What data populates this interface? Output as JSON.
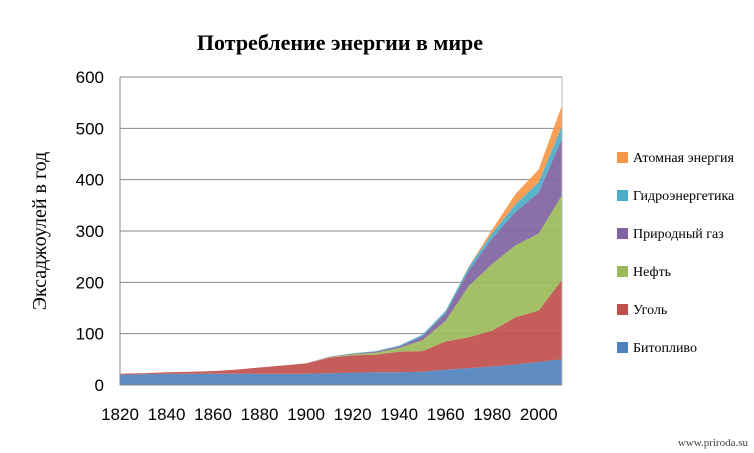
{
  "chart_data": {
    "type": "area",
    "stacked": true,
    "title": "Потребление энергии в мире",
    "xlabel": "",
    "ylabel": "Эксаджоулей в год",
    "xlim": [
      1820,
      2010
    ],
    "ylim": [
      0,
      600
    ],
    "x_ticks": [
      "1820",
      "1840",
      "1860",
      "1880",
      "1900",
      "1920",
      "1940",
      "1960",
      "1980",
      "2000"
    ],
    "y_ticks": [
      "0",
      "100",
      "200",
      "300",
      "400",
      "500",
      "600"
    ],
    "grid": "horizontal",
    "legend_position": "right",
    "x": [
      1820,
      1830,
      1840,
      1850,
      1860,
      1870,
      1880,
      1890,
      1900,
      1910,
      1920,
      1930,
      1940,
      1950,
      1960,
      1970,
      1980,
      1990,
      2000,
      2010
    ],
    "series": [
      {
        "name": "Битопливо",
        "color": "#4F81BD",
        "values": [
          20,
          21,
          22,
          22,
          22,
          22,
          22,
          22,
          22,
          23,
          24,
          25,
          25,
          26,
          30,
          33,
          36,
          40,
          45,
          50
        ]
      },
      {
        "name": "Уголь",
        "color": "#C0504D",
        "values": [
          2,
          2,
          3,
          4,
          5,
          8,
          12,
          16,
          20,
          30,
          34,
          34,
          40,
          40,
          55,
          60,
          70,
          92,
          100,
          155
        ]
      },
      {
        "name": "Нефть",
        "color": "#9BBB59",
        "values": [
          0,
          0,
          0,
          0,
          0,
          0,
          0,
          0,
          0,
          1,
          2,
          4,
          7,
          21,
          40,
          100,
          130,
          140,
          150,
          165
        ]
      },
      {
        "name": "Природный газ",
        "color": "#8064A2",
        "values": [
          0,
          0,
          0,
          0,
          0,
          0,
          0,
          0,
          0,
          1,
          1,
          2,
          3,
          8,
          15,
          30,
          50,
          65,
          80,
          110
        ]
      },
      {
        "name": "Гидроэнергетика",
        "color": "#4BACC6",
        "values": [
          0,
          0,
          0,
          0,
          0,
          0,
          0,
          0,
          0,
          0,
          1,
          1,
          2,
          3,
          5,
          7,
          10,
          15,
          20,
          25
        ]
      },
      {
        "name": "Атомная энергия",
        "color": "#F79646",
        "values": [
          0,
          0,
          0,
          0,
          0,
          0,
          0,
          0,
          0,
          0,
          0,
          0,
          0,
          0,
          0,
          1,
          7,
          20,
          25,
          40
        ]
      }
    ]
  },
  "watermark": "www.priroda.su"
}
